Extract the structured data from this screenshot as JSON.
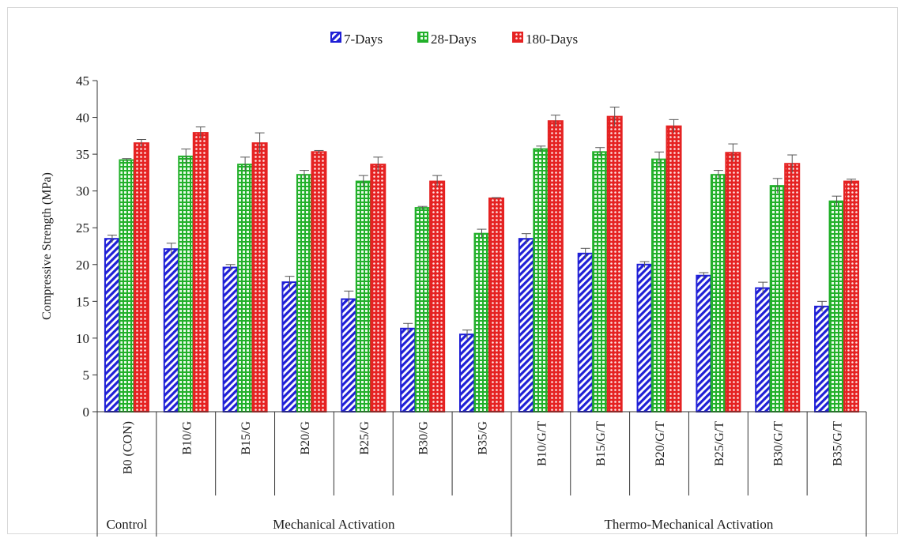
{
  "chart_data": {
    "type": "bar",
    "title": "",
    "xlabel": "",
    "ylabel": "Compressive Strength (MPa)",
    "ylim": [
      0,
      45
    ],
    "yticks": [
      0,
      5,
      10,
      15,
      20,
      25,
      30,
      35,
      40,
      45
    ],
    "grid": false,
    "legend_position": "top-center",
    "categories": [
      "B0 (CON)",
      "B10/G",
      "B15/G",
      "B20/G",
      "B25/G",
      "B30/G",
      "B35/G",
      "B10/G/T",
      "B15/G/T",
      "B20/G/T",
      "B25/G/T",
      "B30/G/T",
      "B35/G/T"
    ],
    "groups": [
      {
        "label": "Control",
        "span": 1
      },
      {
        "label": "Mechanical Activation",
        "span": 6
      },
      {
        "label": "Thermo-Mechanical Activation",
        "span": 6
      }
    ],
    "series": [
      {
        "name": "7-Days",
        "color": "#1f1fd6",
        "pattern": "diagonal",
        "values": [
          23.5,
          22.1,
          19.6,
          17.6,
          15.3,
          11.3,
          10.5,
          23.5,
          21.5,
          20.0,
          18.5,
          16.8,
          14.3
        ],
        "errors": [
          0.5,
          0.8,
          0.4,
          0.8,
          1.1,
          0.7,
          0.6,
          0.7,
          0.7,
          0.4,
          0.4,
          0.8,
          0.7
        ]
      },
      {
        "name": "28-Days",
        "color": "#22b02a",
        "pattern": "grid",
        "values": [
          34.2,
          34.7,
          33.6,
          32.2,
          31.3,
          27.7,
          24.2,
          35.7,
          35.3,
          34.3,
          32.2,
          30.7,
          28.6
        ],
        "errors": [
          0.2,
          1.0,
          1.0,
          0.6,
          0.8,
          0.2,
          0.6,
          0.4,
          0.6,
          1.0,
          0.6,
          1.0,
          0.7
        ]
      },
      {
        "name": "180-Days",
        "color": "#e52222",
        "pattern": "dots",
        "values": [
          36.5,
          37.9,
          36.5,
          35.3,
          33.6,
          31.3,
          29.0,
          39.5,
          40.1,
          38.8,
          35.2,
          33.7,
          31.3
        ],
        "errors": [
          0.5,
          0.8,
          1.4,
          0.2,
          1.0,
          0.8,
          0.1,
          0.8,
          1.3,
          0.9,
          1.2,
          1.2,
          0.3
        ]
      }
    ]
  }
}
